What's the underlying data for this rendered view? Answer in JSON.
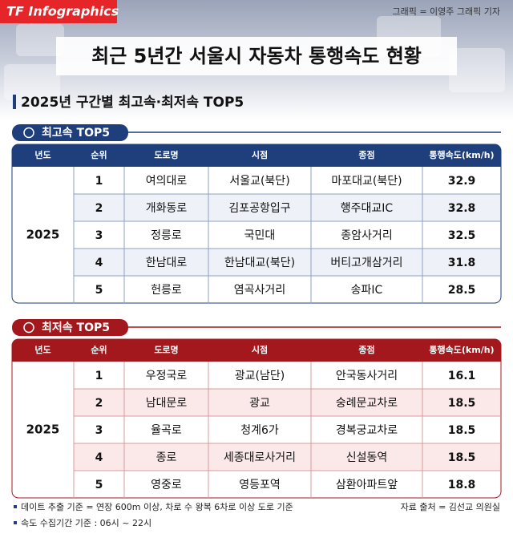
{
  "header": {
    "badge": "TF Infographics",
    "credit": "그래픽 = 이영주 그래픽 기자",
    "title": "최근 5년간 서울시 자동차 통행속도 현황"
  },
  "subtitle": "2025년 구간별 최고속·최저속 TOP5",
  "sections": [
    {
      "label": "최고속 TOP5",
      "columns": [
        "년도",
        "순위",
        "도로명",
        "시점",
        "종점",
        "통행속도(km/h)"
      ],
      "year": "2025",
      "rows": [
        [
          1,
          "여의대로",
          "서울교(북단)",
          "마포대교(북단)",
          32.9
        ],
        [
          2,
          "개화동로",
          "김포공항입구",
          "행주대교IC",
          32.8
        ],
        [
          3,
          "정릉로",
          "국민대",
          "종암사거리",
          32.5
        ],
        [
          4,
          "한남대로",
          "한남대교(북단)",
          "버티고개삼거리",
          31.8
        ],
        [
          5,
          "헌릉로",
          "염곡사거리",
          "송파IC",
          28.5
        ]
      ]
    },
    {
      "label": "최저속 TOP5",
      "columns": [
        "년도",
        "순위",
        "도로명",
        "시점",
        "종점",
        "통행속도(km/h)"
      ],
      "year": "2025",
      "rows": [
        [
          1,
          "우정국로",
          "광교(남단)",
          "안국동사거리",
          16.1
        ],
        [
          2,
          "남대문로",
          "광교",
          "숭례문교차로",
          18.5
        ],
        [
          3,
          "율곡로",
          "청계6가",
          "경복궁교차로",
          18.5
        ],
        [
          4,
          "종로",
          "세종대로사거리",
          "신설동역",
          18.5
        ],
        [
          5,
          "영중로",
          "영등포역",
          "삼환아파트앞",
          18.8
        ]
      ]
    }
  ],
  "footer": {
    "notes": [
      "데이트 추출 기준 = 연장 600m 이상, 차로 수 왕복 6차로 이상 도로 기준",
      "속도 수집기간 기준 : 06시 ~ 22시"
    ],
    "source": "자료 출처 = 김선교 의원실"
  }
}
